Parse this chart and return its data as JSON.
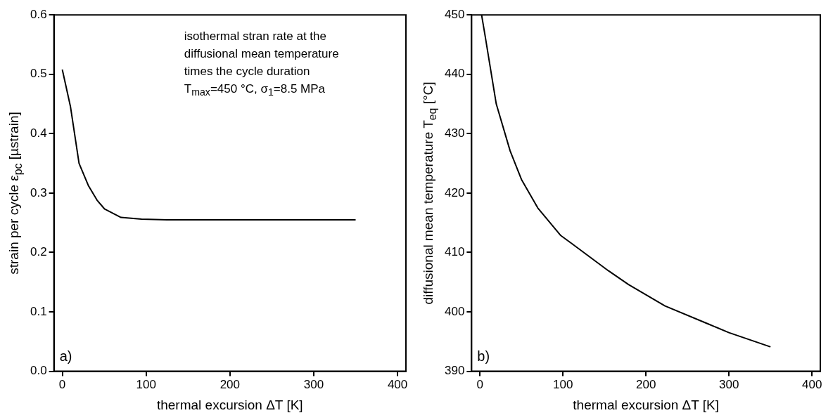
{
  "chart_data": [
    {
      "type": "line",
      "xlabel": "thermal excursion ΔT [K]",
      "ylabel": "strain per cycle ε$_{pc}$ [µstrain]",
      "annotations": [
        "isothermal stran rate at the\ndiffusional mean temperature\ntimes the cycle duration\nT$_{max}$=450 °C, σ$_{1}$=8.5 MPa",
        "a)"
      ],
      "xlim": [
        -10,
        410
      ],
      "xticks": [
        0,
        100,
        200,
        300,
        400
      ],
      "ylim": [
        0,
        0.6
      ],
      "yticks": [
        {
          "value": 0,
          "label": "0.0"
        },
        0.1,
        0.2,
        0.3,
        0.4,
        0.5,
        0.6
      ],
      "grid": false,
      "legend": false,
      "marker": "none",
      "line_style": "solid",
      "series": [
        {
          "color": "#000000",
          "x": [
            0,
            9.7,
            20,
            31,
            41.5,
            50.6,
            70,
            94.5,
            125,
            200,
            350
          ],
          "values": [
            0.508,
            0.446,
            0.35,
            0.313,
            0.288,
            0.273,
            0.259,
            0.256,
            0.255,
            0.255,
            0.255
          ]
        }
      ]
    },
    {
      "type": "line",
      "xlabel": "thermal excursion ΔT [K]",
      "ylabel": "diffusional mean temperature T$_{eq}$ [°C]",
      "annotations": [
        "b)"
      ],
      "xlim": [
        -10,
        410
      ],
      "xticks": [
        0,
        100,
        200,
        300,
        400
      ],
      "ylim": [
        390,
        450
      ],
      "yticks": [
        390,
        400,
        410,
        420,
        430,
        440,
        450
      ],
      "grid": false,
      "legend": false,
      "marker": "none",
      "line_style": "solid",
      "series": [
        {
          "color": "#000000",
          "x": [
            2,
            6,
            19.7,
            36.4,
            50,
            69.7,
            97,
            110.6,
            155,
            179,
            223,
            276,
            300,
            350
          ],
          "values": [
            450,
            446.7,
            435,
            427.1,
            422.3,
            417.5,
            412.9,
            411.5,
            406.9,
            404.6,
            401,
            397.9,
            396.5,
            394.1
          ]
        }
      ]
    }
  ]
}
